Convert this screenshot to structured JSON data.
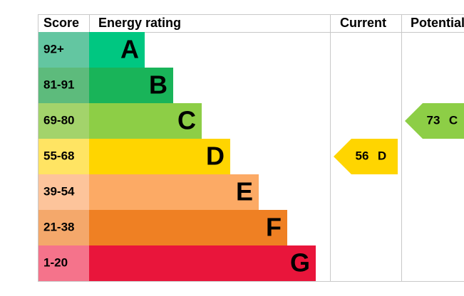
{
  "header": {
    "score": "Score",
    "rating": "Energy rating",
    "current": "Current",
    "potential": "Potential"
  },
  "bands": [
    {
      "score": "92+",
      "letter": "A",
      "color": "#00c781",
      "score_color": "#63c6a1"
    },
    {
      "score": "81-91",
      "letter": "B",
      "color": "#19b459",
      "score_color": "#5dbb7c"
    },
    {
      "score": "69-80",
      "letter": "C",
      "color": "#8dce46",
      "score_color": "#a3d36b"
    },
    {
      "score": "55-68",
      "letter": "D",
      "color": "#ffd500",
      "score_color": "#ffe463"
    },
    {
      "score": "39-54",
      "letter": "E",
      "color": "#fcaa65",
      "score_color": "#fdc49b"
    },
    {
      "score": "21-38",
      "letter": "F",
      "color": "#ef8023",
      "score_color": "#f4a86b"
    },
    {
      "score": "1-20",
      "letter": "G",
      "color": "#e9153b",
      "score_color": "#f5738b"
    }
  ],
  "current": {
    "value": 56,
    "letter": "D"
  },
  "potential": {
    "value": 73,
    "letter": "C"
  }
}
